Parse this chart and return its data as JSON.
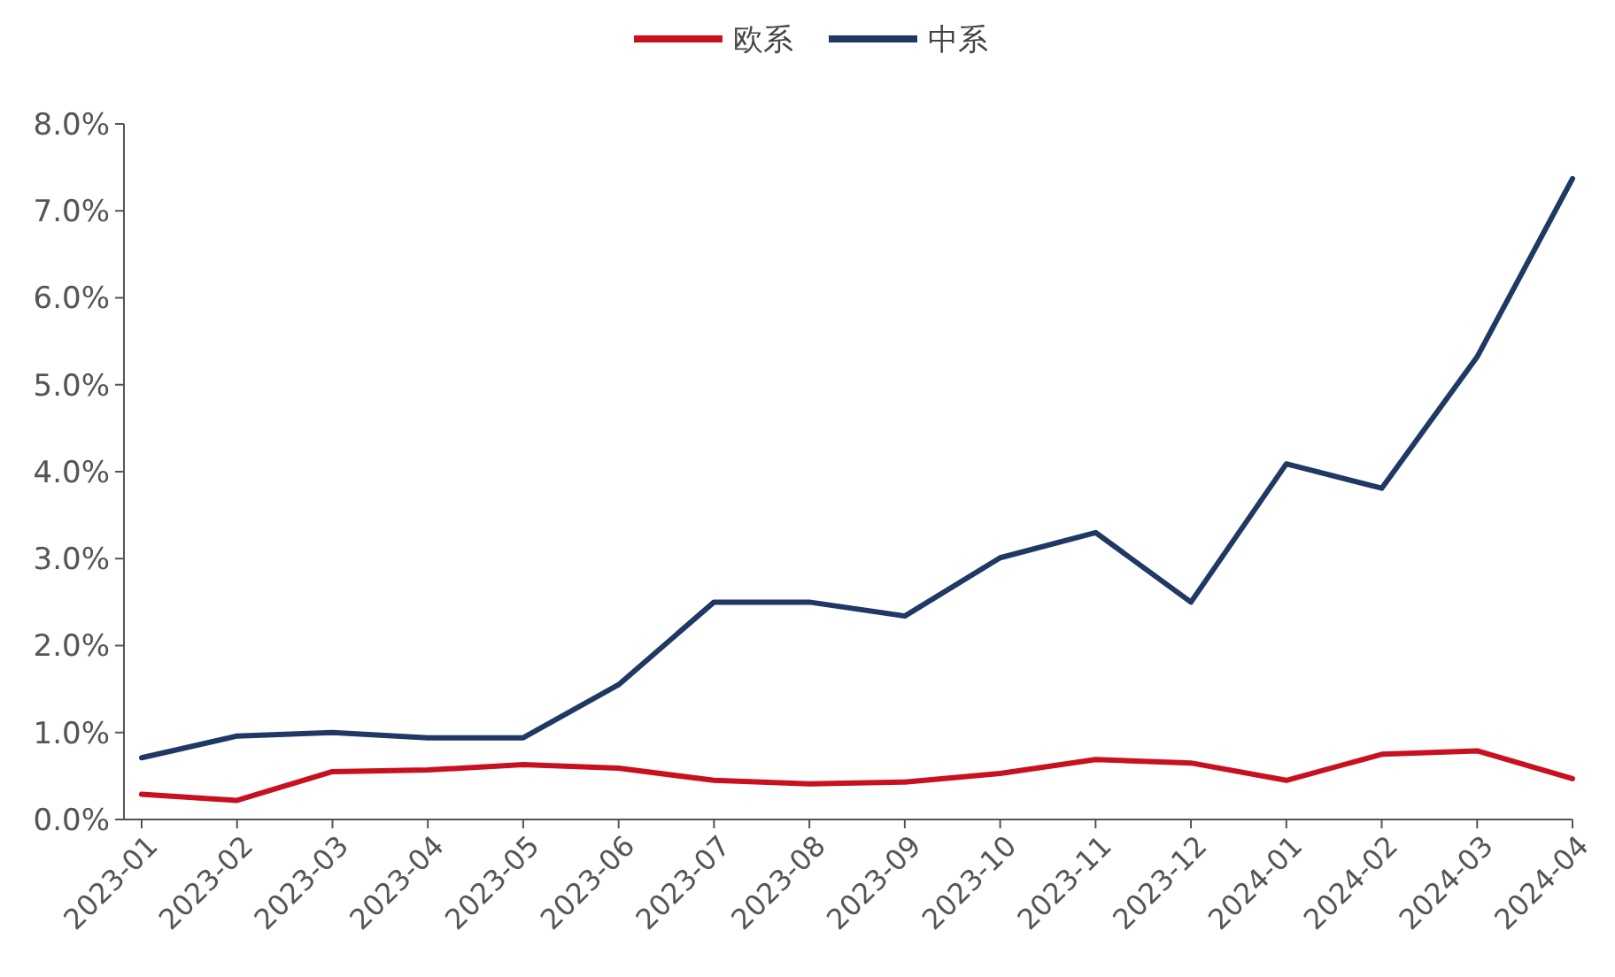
{
  "chart_data": {
    "type": "line",
    "categories": [
      "2023-01",
      "2023-02",
      "2023-03",
      "2023-04",
      "2023-05",
      "2023-06",
      "2023-07",
      "2023-08",
      "2023-09",
      "2023-10",
      "2023-11",
      "2023-12",
      "2024-01",
      "2024-02",
      "2024-03",
      "2024-04"
    ],
    "series": [
      {
        "name": "欧系",
        "color": "#c8101e",
        "values": [
          0.29,
          0.22,
          0.55,
          0.57,
          0.63,
          0.59,
          0.45,
          0.41,
          0.43,
          0.53,
          0.69,
          0.65,
          0.45,
          0.75,
          0.79,
          0.47
        ]
      },
      {
        "name": "中系",
        "color": "#1f3864",
        "values": [
          0.71,
          0.96,
          1.0,
          0.94,
          0.94,
          1.55,
          2.5,
          2.5,
          2.34,
          3.01,
          3.3,
          2.5,
          4.09,
          3.81,
          5.32,
          7.37
        ]
      }
    ],
    "ylim": [
      0,
      8
    ],
    "yticks": [
      {
        "value": 0,
        "label": "0.0%"
      },
      {
        "value": 1,
        "label": "1.0%"
      },
      {
        "value": 2,
        "label": "2.0%"
      },
      {
        "value": 3,
        "label": "3.0%"
      },
      {
        "value": 4,
        "label": "4.0%"
      },
      {
        "value": 5,
        "label": "5.0%"
      },
      {
        "value": 6,
        "label": "6.0%"
      },
      {
        "value": 7,
        "label": "7.0%"
      },
      {
        "value": 8,
        "label": "8.0%"
      }
    ],
    "legend": "top",
    "grid": false,
    "marker": "none",
    "line_style": "solid"
  }
}
